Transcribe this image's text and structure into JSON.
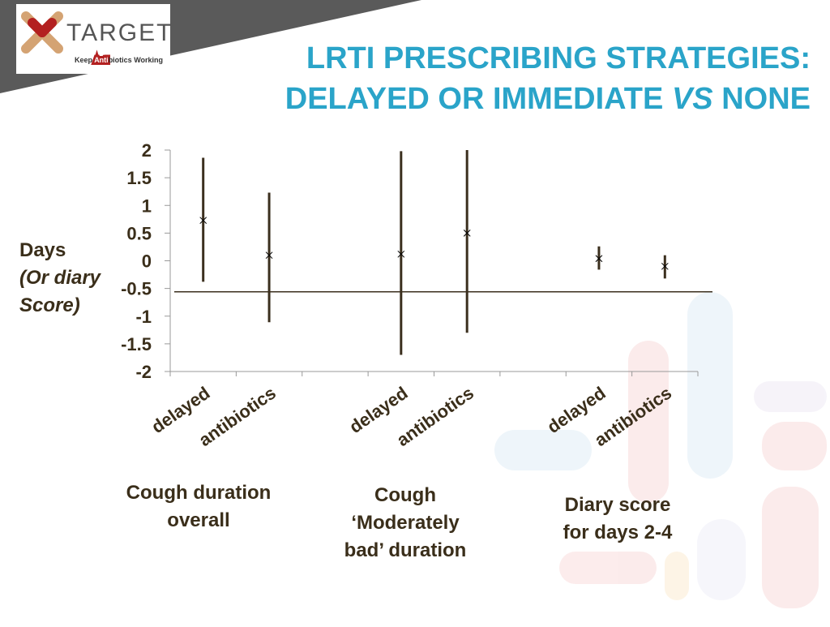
{
  "logo": {
    "name": "TARGET",
    "tagline": [
      "Keep",
      "Anti",
      "biotics",
      "Working"
    ]
  },
  "chart_data": {
    "type": "errorbar",
    "title": [
      "LRTI PRESCRIBING STRATEGIES:",
      "DELAYED OR IMMEDIATE",
      "VS",
      "NONE"
    ],
    "ylabel": [
      "Days",
      "(Or diary",
      "Score)"
    ],
    "categories": [
      "delayed",
      "antibiotics",
      null,
      "delayed",
      "antibiotics",
      null,
      "delayed",
      "antibiotics"
    ],
    "values": [
      0.73,
      0.1,
      null,
      0.12,
      0.5,
      null,
      0.04,
      -0.1
    ],
    "low": [
      -0.38,
      -1.11,
      null,
      -1.7,
      -1.3,
      null,
      -0.16,
      -0.32
    ],
    "high": [
      1.86,
      1.23,
      null,
      1.98,
      2.0,
      null,
      0.26,
      0.1
    ],
    "reference_line": -0.56,
    "groups": [
      [
        "Cough duration",
        "overall"
      ],
      [
        "Cough",
        "‘Moderately",
        "bad’ duration"
      ],
      [
        "Diary score",
        "for days 2-4"
      ]
    ],
    "color": "#3b2f1e",
    "ylim": [
      -2,
      2
    ],
    "yticks": [
      2,
      1.5,
      1,
      0.5,
      0,
      -0.5,
      -1,
      -1.5,
      -2
    ]
  }
}
